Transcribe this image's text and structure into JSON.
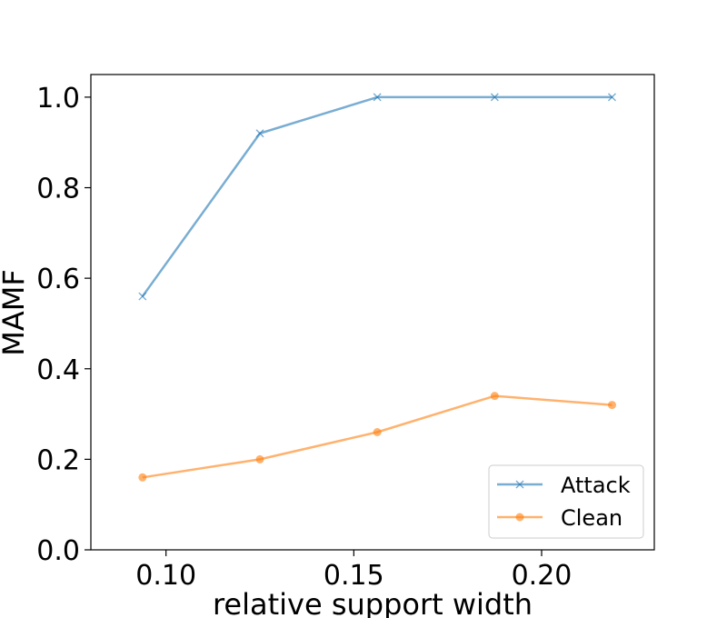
{
  "chart_data": {
    "type": "line",
    "xlabel": "relative support width",
    "ylabel": "MAMF",
    "xlim": [
      0.08,
      0.23
    ],
    "ylim": [
      0.0,
      1.05
    ],
    "xticks": [
      0.1,
      0.15,
      0.2
    ],
    "xtick_labels": [
      "0.10",
      "0.15",
      "0.20"
    ],
    "yticks": [
      0.0,
      0.2,
      0.4,
      0.6,
      0.8,
      1.0
    ],
    "ytick_labels": [
      "0.0",
      "0.2",
      "0.4",
      "0.6",
      "0.8",
      "1.0"
    ],
    "x": [
      0.09375,
      0.125,
      0.15625,
      0.1875,
      0.21875
    ],
    "series": [
      {
        "name": "Attack",
        "values": [
          0.56,
          0.92,
          1.0,
          1.0,
          1.0
        ],
        "color": "#1f77b4",
        "marker": "x"
      },
      {
        "name": "Clean",
        "values": [
          0.16,
          0.2,
          0.26,
          0.34,
          0.32
        ],
        "color": "#ff7f0e",
        "marker": "o"
      }
    ],
    "legend": "lower-right",
    "grid": false
  }
}
